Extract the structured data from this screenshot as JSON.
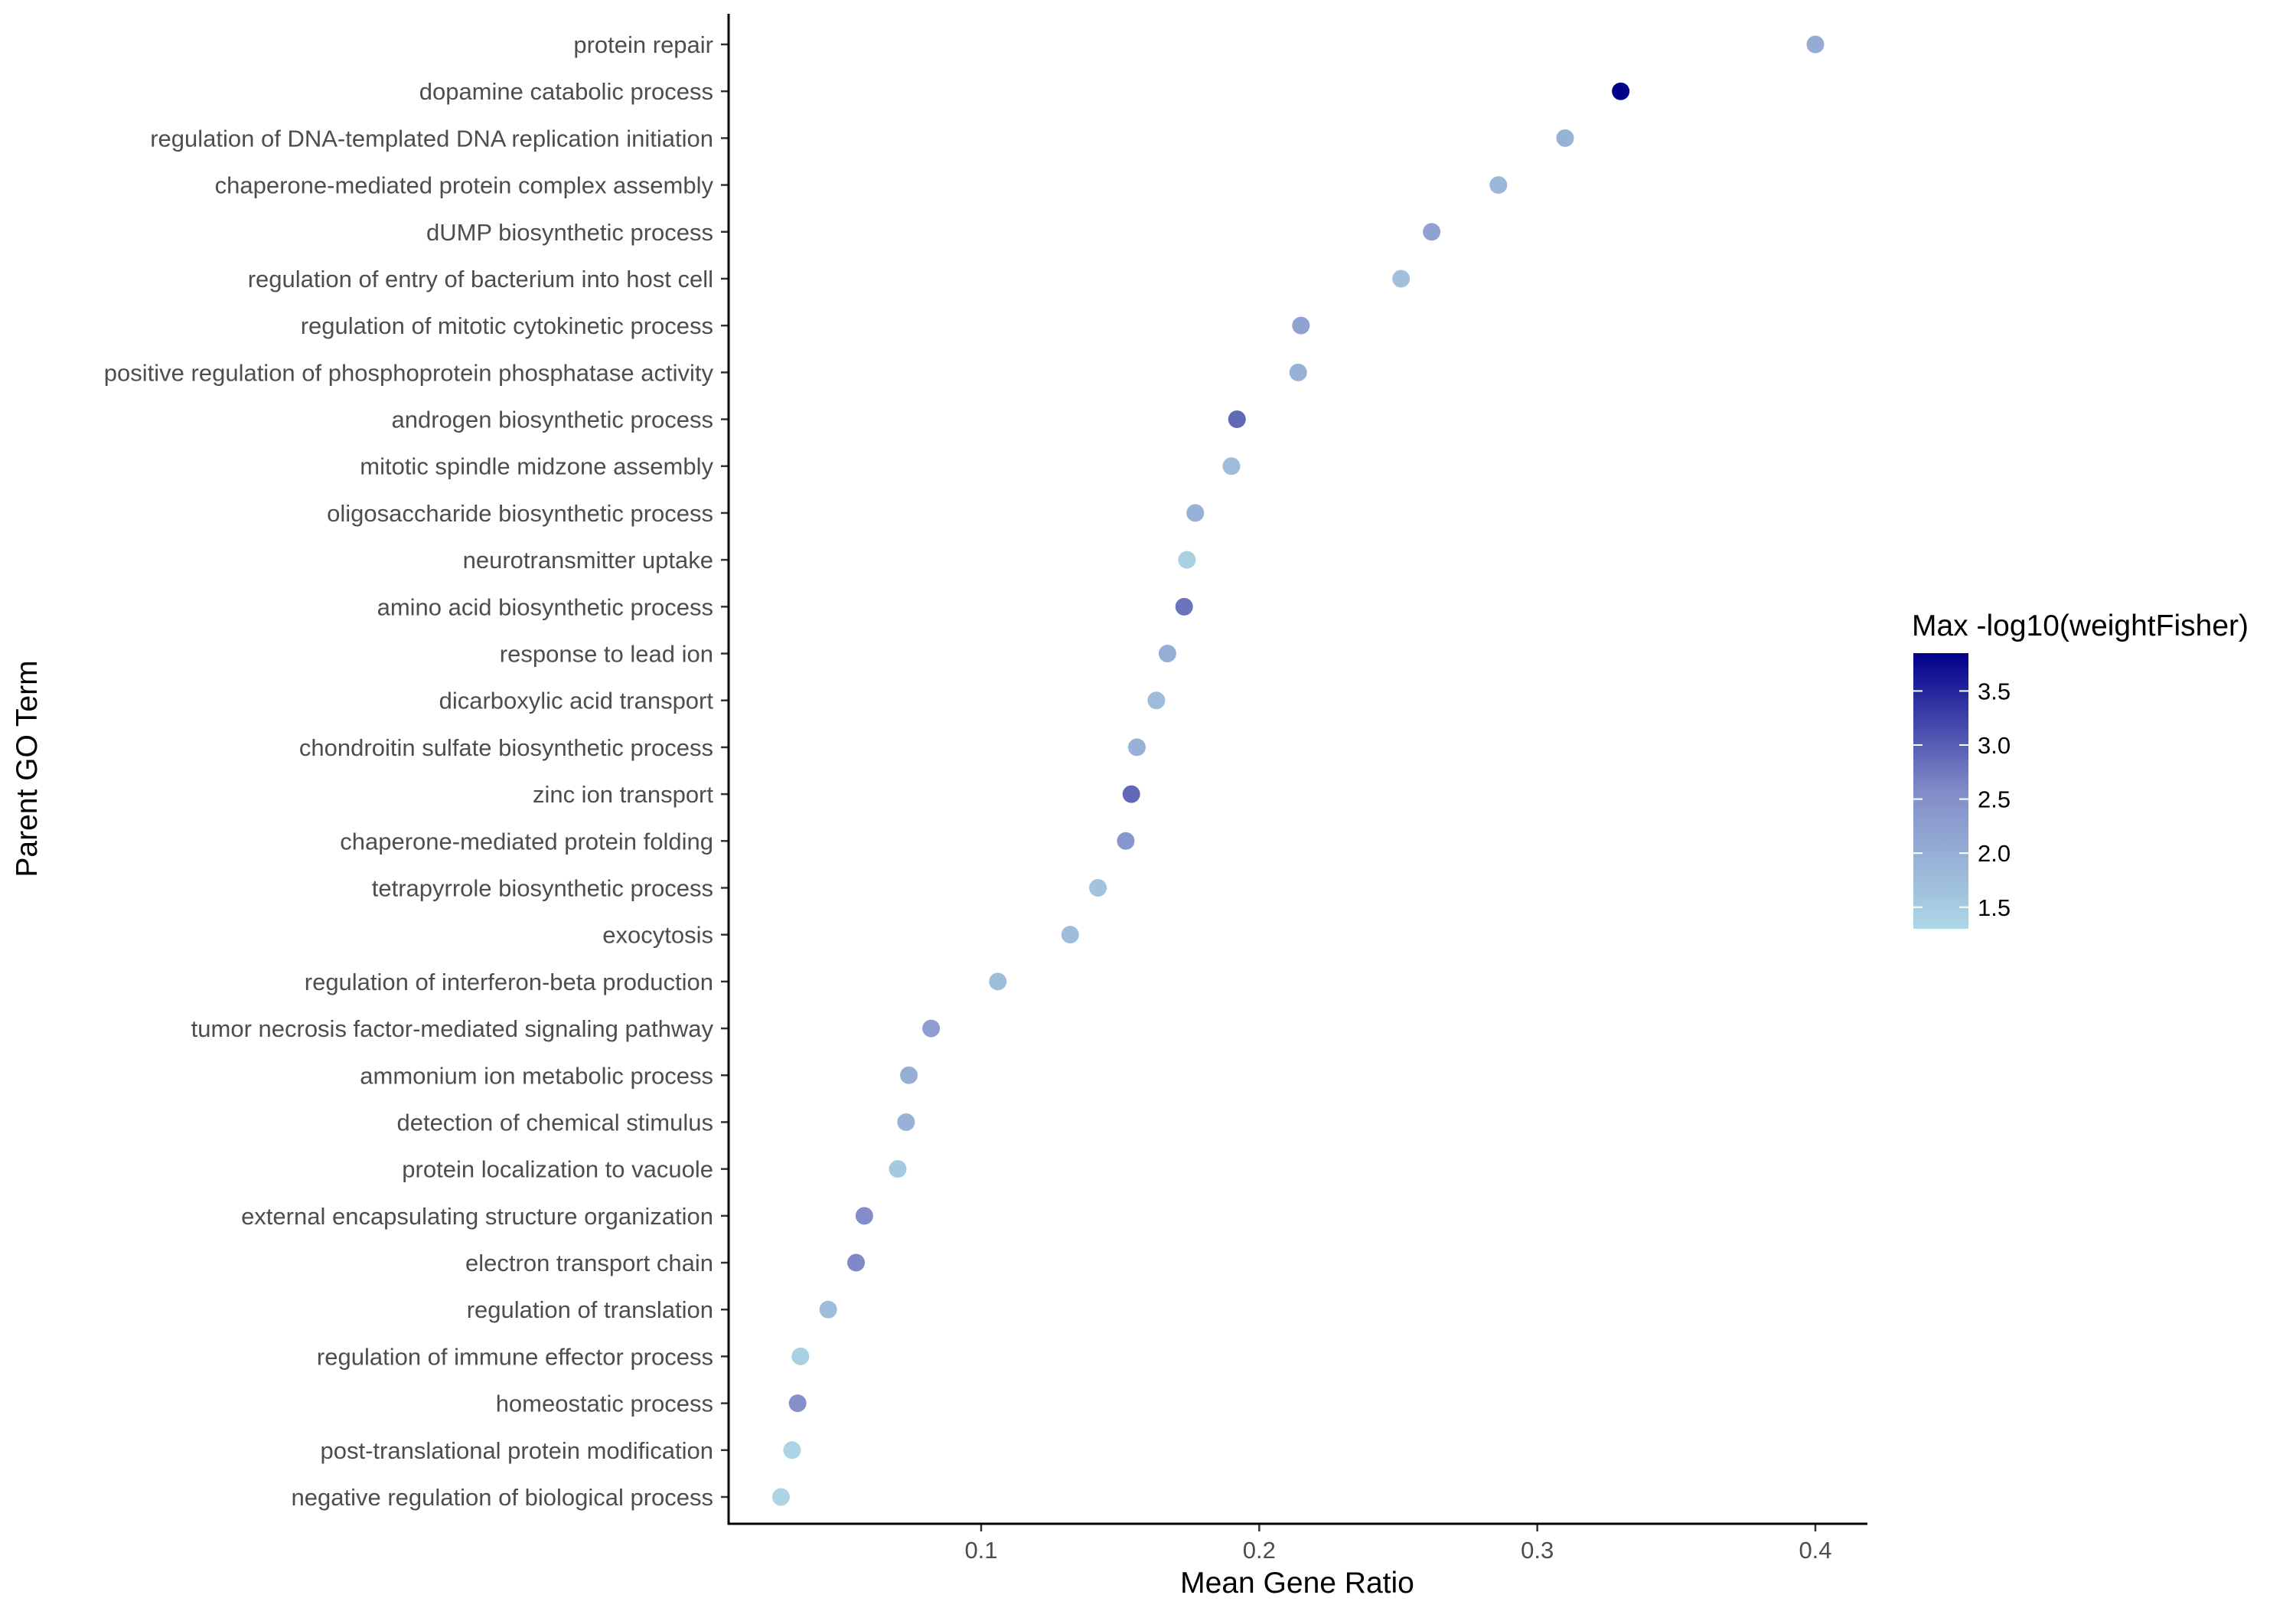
{
  "chart_data": {
    "type": "scatter",
    "xlabel": "Mean Gene Ratio",
    "ylabel": "Parent GO Term",
    "xlim": [
      0.01,
      0.42
    ],
    "x_ticks": [
      0.1,
      0.2,
      0.3,
      0.4
    ],
    "x_tick_labels": [
      "0.1",
      "0.2",
      "0.3",
      "0.4"
    ],
    "grid": false,
    "legend": {
      "title": "Max -log10(weightFisher)",
      "placement": "right",
      "range": [
        1.3,
        3.85
      ],
      "ticks": [
        1.5,
        2.0,
        2.5,
        3.0,
        3.5
      ],
      "tick_labels": [
        "1.5",
        "2.0",
        "2.5",
        "3.0",
        "3.5"
      ],
      "color_low": "#add8e6",
      "color_high": "#00008b"
    },
    "points": [
      {
        "term": "protein repair",
        "x": 0.4,
        "c": 2.05
      },
      {
        "term": "dopamine catabolic process",
        "x": 0.33,
        "c": 3.85
      },
      {
        "term": "regulation of DNA-templated DNA replication initiation",
        "x": 0.31,
        "c": 1.95
      },
      {
        "term": "chaperone-mediated protein complex assembly",
        "x": 0.286,
        "c": 1.85
      },
      {
        "term": "dUMP biosynthetic process",
        "x": 0.262,
        "c": 2.2
      },
      {
        "term": "regulation of entry of bacterium into host cell",
        "x": 0.251,
        "c": 1.7
      },
      {
        "term": "regulation of mitotic cytokinetic process",
        "x": 0.215,
        "c": 2.2
      },
      {
        "term": "positive regulation of phosphoprotein phosphatase activity",
        "x": 0.214,
        "c": 1.95
      },
      {
        "term": "androgen biosynthetic process",
        "x": 0.192,
        "c": 2.9
      },
      {
        "term": "mitotic spindle midzone assembly",
        "x": 0.19,
        "c": 1.75
      },
      {
        "term": "oligosaccharide biosynthetic process",
        "x": 0.177,
        "c": 1.95
      },
      {
        "term": "neurotransmitter uptake",
        "x": 0.174,
        "c": 1.45
      },
      {
        "term": "amino acid biosynthetic process",
        "x": 0.173,
        "c": 2.8
      },
      {
        "term": "response to lead ion",
        "x": 0.167,
        "c": 2.0
      },
      {
        "term": "dicarboxylic acid transport",
        "x": 0.163,
        "c": 1.75
      },
      {
        "term": "chondroitin sulfate biosynthetic process",
        "x": 0.156,
        "c": 1.95
      },
      {
        "term": "zinc ion transport",
        "x": 0.154,
        "c": 2.9
      },
      {
        "term": "chaperone-mediated protein folding",
        "x": 0.152,
        "c": 2.4
      },
      {
        "term": "tetrapyrrole biosynthetic process",
        "x": 0.142,
        "c": 1.65
      },
      {
        "term": "exocytosis",
        "x": 0.132,
        "c": 1.75
      },
      {
        "term": "regulation of interferon-beta production",
        "x": 0.106,
        "c": 1.75
      },
      {
        "term": "tumor necrosis factor-mediated signaling pathway",
        "x": 0.082,
        "c": 2.25
      },
      {
        "term": "ammonium ion metabolic process",
        "x": 0.074,
        "c": 2.0
      },
      {
        "term": "detection of chemical stimulus",
        "x": 0.073,
        "c": 1.95
      },
      {
        "term": "protein localization to vacuole",
        "x": 0.07,
        "c": 1.55
      },
      {
        "term": "external encapsulating structure organization",
        "x": 0.058,
        "c": 2.55
      },
      {
        "term": "electron transport chain",
        "x": 0.055,
        "c": 2.6
      },
      {
        "term": "regulation of translation",
        "x": 0.045,
        "c": 1.75
      },
      {
        "term": "regulation of immune effector process",
        "x": 0.035,
        "c": 1.45
      },
      {
        "term": "homeostatic process",
        "x": 0.034,
        "c": 2.5
      },
      {
        "term": "post-translational protein modification",
        "x": 0.032,
        "c": 1.35
      },
      {
        "term": "negative regulation of biological process",
        "x": 0.028,
        "c": 1.35
      }
    ]
  }
}
